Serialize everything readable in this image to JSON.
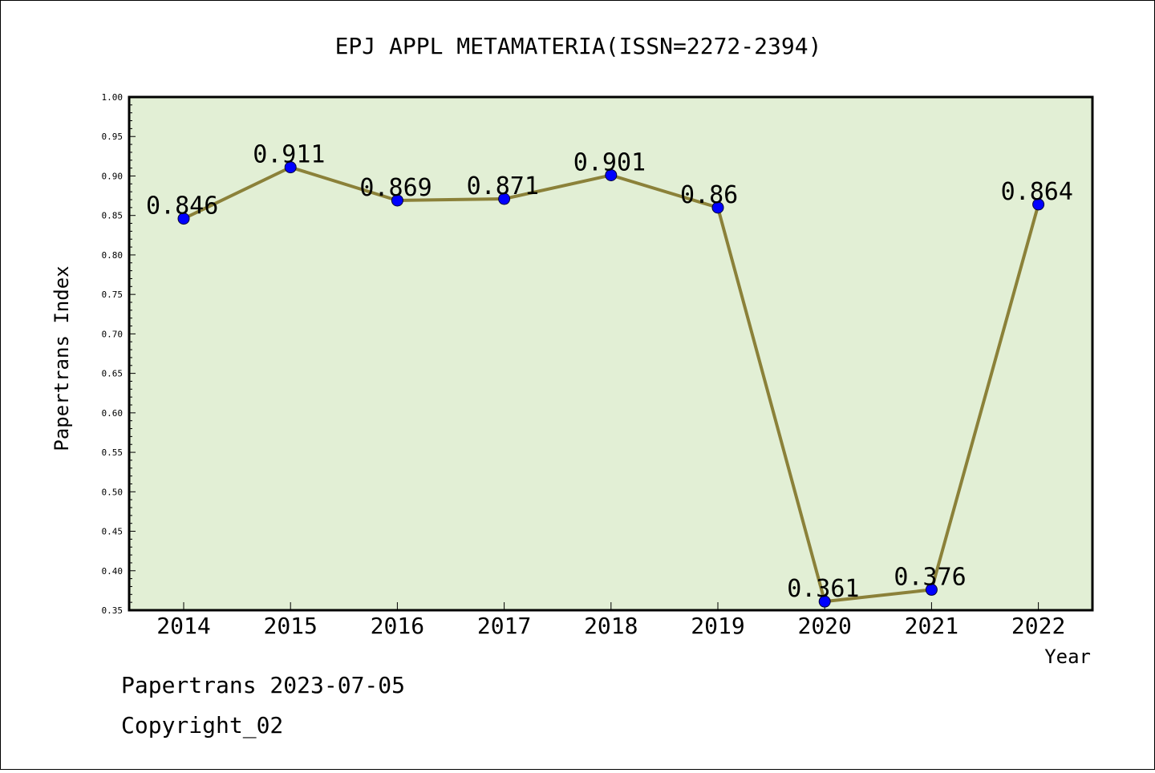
{
  "chart_data": {
    "type": "line",
    "title": "EPJ APPL METAMATERIA(ISSN=2272-2394)",
    "xlabel": "Year",
    "ylabel": "Papertrans Index",
    "x": [
      "2014",
      "2015",
      "2016",
      "2017",
      "2018",
      "2019",
      "2020",
      "2021",
      "2022"
    ],
    "values": [
      0.846,
      0.911,
      0.869,
      0.871,
      0.901,
      0.86,
      0.361,
      0.376,
      0.864
    ],
    "data_labels": [
      "0.846",
      "0.911",
      "0.869",
      "0.871",
      "0.901",
      "0.86",
      "0.361",
      "0.376",
      "0.864"
    ],
    "ylim": [
      0.35,
      1.0
    ],
    "y_ticks": [
      "0.35",
      "0.40",
      "0.45",
      "0.50",
      "0.55",
      "0.60",
      "0.65",
      "0.70",
      "0.75",
      "0.80",
      "0.85",
      "0.90",
      "0.95",
      "1.00"
    ],
    "grid": false,
    "colors": {
      "plot_background": "#e2efd5",
      "line": "#8b8139",
      "marker": "#0000ff"
    }
  },
  "footer": {
    "line1": "Papertrans 2023-07-05",
    "line2": "Copyright_02"
  }
}
